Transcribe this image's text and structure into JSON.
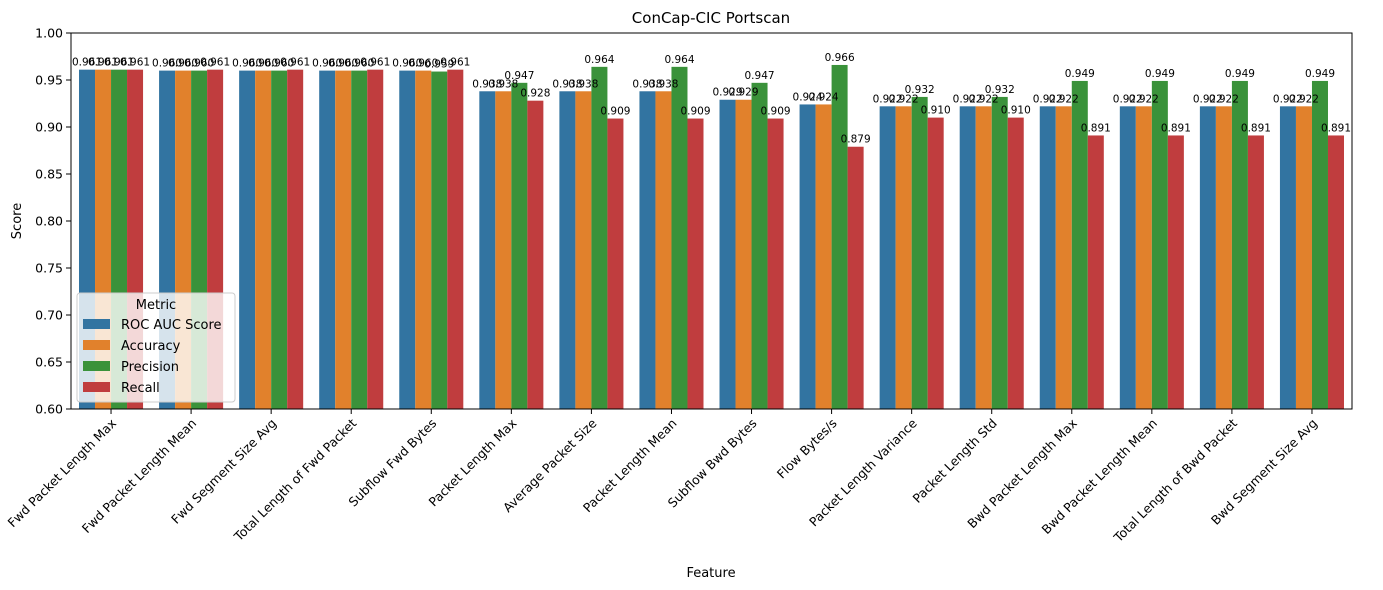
{
  "chart_data": {
    "type": "bar",
    "title": "ConCap-CIC Portscan",
    "xlabel": "Feature",
    "ylabel": "Score",
    "ylim": [
      0.6,
      1.0
    ],
    "yticks": [
      "0.60",
      "0.65",
      "0.70",
      "0.75",
      "0.80",
      "0.85",
      "0.90",
      "0.95",
      "1.00"
    ],
    "grid": false,
    "legend": {
      "title": "Metric",
      "placement": "lower-left"
    },
    "categories": [
      "Fwd Packet Length Max",
      "Fwd Packet Length Mean",
      "Fwd Segment Size Avg",
      "Total Length of Fwd Packet",
      "Subflow Fwd Bytes",
      "Packet Length Max",
      "Average Packet Size",
      "Packet Length Mean",
      "Subflow Bwd Bytes",
      "Flow Bytes/s",
      "Packet Length Variance",
      "Packet Length Std",
      "Bwd Packet Length Max",
      "Bwd Packet Length Mean",
      "Total Length of Bwd Packet",
      "Bwd Segment Size Avg"
    ],
    "series": [
      {
        "name": "ROC AUC Score",
        "color": "#3274a1",
        "values": [
          0.961,
          0.96,
          0.96,
          0.96,
          0.96,
          0.938,
          0.938,
          0.938,
          0.929,
          0.924,
          0.922,
          0.922,
          0.922,
          0.922,
          0.922,
          0.922
        ],
        "labels": [
          "0.961",
          "0.960",
          "0.960",
          "0.960",
          "0.960",
          "0.938",
          "0.938",
          "0.938",
          "0.929",
          "0.924",
          "0.922",
          "0.922",
          "0.922",
          "0.922",
          "0.922",
          "0.922"
        ]
      },
      {
        "name": "Accuracy",
        "color": "#e1812c",
        "values": [
          0.961,
          0.96,
          0.96,
          0.96,
          0.96,
          0.938,
          0.938,
          0.938,
          0.929,
          0.924,
          0.922,
          0.922,
          0.922,
          0.922,
          0.922,
          0.922
        ],
        "labels": [
          "0.961",
          "0.960",
          "0.960",
          "0.960",
          "0.960",
          "0.938",
          "0.938",
          "0.938",
          "0.929",
          "0.924",
          "0.922",
          "0.922",
          "0.922",
          "0.922",
          "0.922",
          "0.922"
        ]
      },
      {
        "name": "Precision",
        "color": "#3a923a",
        "values": [
          0.961,
          0.96,
          0.96,
          0.96,
          0.959,
          0.947,
          0.964,
          0.964,
          0.947,
          0.966,
          0.932,
          0.932,
          0.949,
          0.949,
          0.949,
          0.949
        ],
        "labels": [
          "0.961",
          "0.960",
          "0.960",
          "0.960",
          "0.959",
          "0.947",
          "0.964",
          "0.964",
          "0.947",
          "0.966",
          "0.932",
          "0.932",
          "0.949",
          "0.949",
          "0.949",
          "0.949"
        ]
      },
      {
        "name": "Recall",
        "color": "#c03d3e",
        "values": [
          0.961,
          0.961,
          0.961,
          0.961,
          0.961,
          0.928,
          0.909,
          0.909,
          0.909,
          0.879,
          0.91,
          0.91,
          0.891,
          0.891,
          0.891,
          0.891
        ],
        "labels": [
          "0.961",
          "0.961",
          "0.961",
          "0.961",
          "0.961",
          "0.928",
          "0.909",
          "0.909",
          "0.909",
          "0.879",
          "0.910",
          "0.910",
          "0.891",
          "0.891",
          "0.891",
          "0.891"
        ]
      }
    ]
  }
}
